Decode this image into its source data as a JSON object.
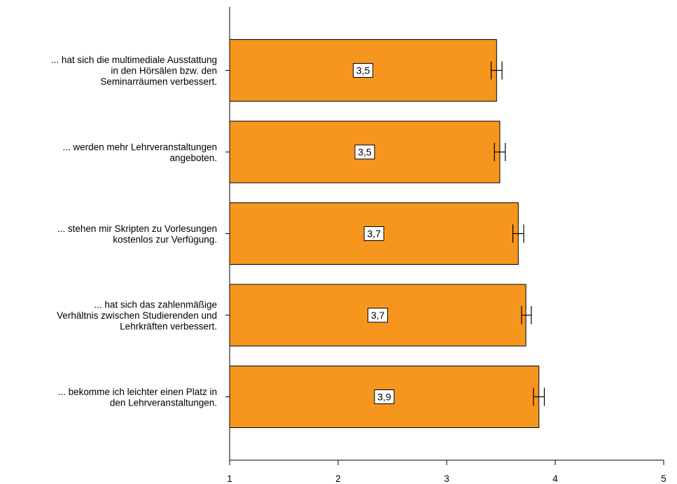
{
  "chart_data": {
    "type": "bar",
    "orientation": "horizontal",
    "categories": [
      [
        "... hat sich die multimediale Ausstattung",
        "in den Hörsälen bzw. den",
        "Seminarräumen verbessert."
      ],
      [
        "... werden mehr Lehrveranstaltungen",
        "angeboten."
      ],
      [
        "... stehen mir Skripten zu Vorlesungen",
        "kostenlos zur Verfügung."
      ],
      [
        "... hat sich das zahlenmäßige",
        "Verhältnis zwischen Studierenden und",
        "Lehrkräften verbessert."
      ],
      [
        "... bekomme ich leichter einen Platz in",
        "den Lehrveranstaltungen."
      ]
    ],
    "values": [
      3.46,
      3.49,
      3.66,
      3.73,
      3.85
    ],
    "value_labels": [
      "3,5",
      "3,5",
      "3,7",
      "3,7",
      "3,9"
    ],
    "error_bars": [
      [
        3.41,
        3.51
      ],
      [
        3.44,
        3.54
      ],
      [
        3.61,
        3.71
      ],
      [
        3.69,
        3.78
      ],
      [
        3.8,
        3.9
      ]
    ],
    "xlim": [
      1,
      5
    ],
    "xticks": [
      "1",
      "2",
      "3",
      "4",
      "5"
    ],
    "title": "",
    "xlabel": "",
    "ylabel": "",
    "bar_color": "#f7961e",
    "grid": false,
    "legend": "none"
  }
}
